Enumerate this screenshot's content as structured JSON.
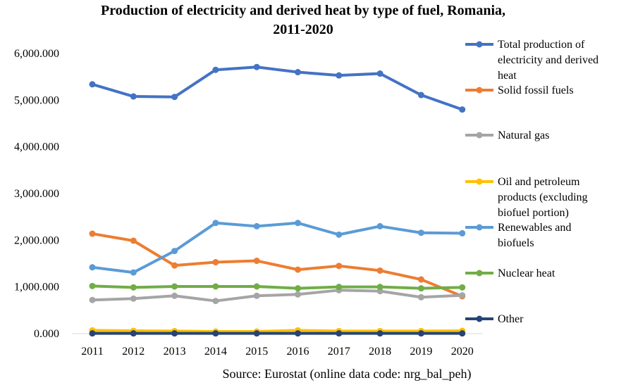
{
  "chart_data": {
    "type": "line",
    "title_line1": "Production of electricity and derived heat by type of fuel, Romania,",
    "title_line2": "2011-2020",
    "source": "Source: Eurostat (online data code: nrg_bal_peh)",
    "x": [
      "2011",
      "2012",
      "2013",
      "2014",
      "2015",
      "2016",
      "2017",
      "2018",
      "2019",
      "2020"
    ],
    "ylim": [
      0,
      6000
    ],
    "yticks": [
      "0.000",
      "1,000.000",
      "2,000.000",
      "3,000.000",
      "4,000.000",
      "5,000.000",
      "6,000.000"
    ],
    "ytick_values": [
      0,
      1000,
      2000,
      3000,
      4000,
      5000,
      6000
    ],
    "grid": false,
    "legend_position": "right",
    "series": [
      {
        "name": "Total production of electricity and derived heat",
        "color": "#4472C4",
        "values": [
          5340,
          5080,
          5070,
          5650,
          5710,
          5600,
          5530,
          5570,
          5110,
          4800
        ]
      },
      {
        "name": "Solid fossil fuels",
        "color": "#ED7D31",
        "values": [
          2140,
          1990,
          1460,
          1530,
          1560,
          1370,
          1450,
          1350,
          1160,
          800
        ]
      },
      {
        "name": "Natural gas",
        "color": "#A5A5A5",
        "values": [
          720,
          750,
          810,
          700,
          810,
          840,
          930,
          910,
          780,
          820
        ]
      },
      {
        "name": "Oil and petroleum products (excluding biofuel portion)",
        "color": "#FFC000",
        "values": [
          70,
          60,
          55,
          45,
          45,
          70,
          55,
          55,
          55,
          60
        ]
      },
      {
        "name": "Renewables and biofuels",
        "color": "#5B9BD5",
        "values": [
          1420,
          1310,
          1770,
          2370,
          2300,
          2370,
          2120,
          2300,
          2160,
          2150
        ]
      },
      {
        "name": "Nuclear heat",
        "color": "#70AD47",
        "values": [
          1020,
          990,
          1010,
          1010,
          1010,
          970,
          1000,
          1000,
          970,
          990
        ]
      },
      {
        "name": "Other",
        "color": "#264478",
        "values": [
          5,
          5,
          5,
          5,
          5,
          5,
          5,
          5,
          5,
          5
        ]
      }
    ]
  }
}
